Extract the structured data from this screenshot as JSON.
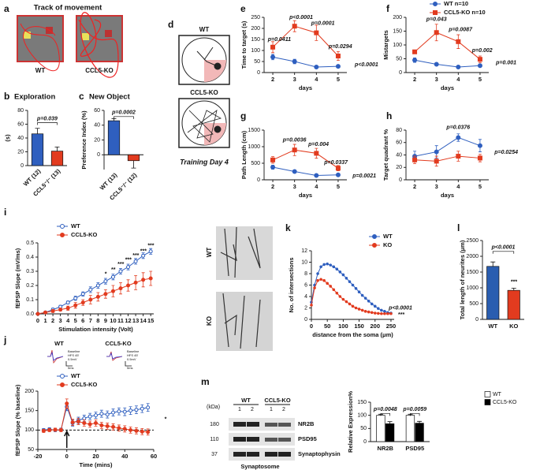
{
  "figure": {
    "a": {
      "panel": "a",
      "title": "Track of movement",
      "labels": [
        "WT",
        "CCL5-KO"
      ]
    },
    "d": {
      "panel": "d",
      "labels": [
        "WT",
        "CCL5-KO"
      ],
      "caption": "Training Day 4"
    },
    "j_traces": {
      "labels": [
        "WT",
        "CCL5-KO"
      ],
      "legend": [
        "Baseline",
        "HFS 45'",
        "0.5mV",
        "5ms"
      ]
    },
    "k_images": {
      "labels": [
        "WT",
        "KO"
      ]
    },
    "m_blot": {
      "unit": "(kDa)",
      "markers": [
        180,
        110,
        37
      ],
      "bands": [
        "NR2B",
        "PSD95",
        "Synaptophysin"
      ],
      "groups": [
        "WT",
        "CCL5-KO"
      ],
      "lanes": [
        1,
        2,
        1,
        2
      ],
      "caption": "Synaptosome"
    }
  },
  "chart_data": [
    {
      "panel": "b",
      "type": "bar",
      "title": "Exploration",
      "ylabel": "(s)",
      "categories": [
        "WT (12)",
        "CCL5⁻/⁻ (13)"
      ],
      "values": [
        46,
        21
      ],
      "errors": [
        8,
        6
      ],
      "colors": [
        "#2f5fbf",
        "#e23b1f"
      ],
      "ylim": [
        0,
        80
      ],
      "yticks": [
        0,
        20,
        40,
        60,
        80
      ],
      "annotations": [
        {
          "text": "p=0.039",
          "y": 68
        }
      ]
    },
    {
      "panel": "c",
      "type": "bar",
      "title": "New Object",
      "ylabel": "Preference Index (%)",
      "categories": [
        "WT (13)",
        "CCL5⁻/⁻ (12)"
      ],
      "values": [
        46,
        -8
      ],
      "errors": [
        3,
        10
      ],
      "colors": [
        "#2f5fbf",
        "#e23b1f"
      ],
      "ylim": [
        -20,
        60
      ],
      "yticks": [
        0,
        20,
        40,
        60
      ],
      "annotations": [
        {
          "text": "p=0.0002",
          "y": 57
        }
      ]
    },
    {
      "panel": "e",
      "type": "line",
      "ylabel": "Time to target (s)",
      "xlabel": "days",
      "x": [
        2,
        3,
        4,
        5
      ],
      "xlim": [
        1.6,
        5.4
      ],
      "xticks": [
        2,
        3,
        4,
        5
      ],
      "ylim": [
        0,
        250
      ],
      "yticks": [
        0,
        50,
        100,
        150,
        200,
        250
      ],
      "series": [
        {
          "color": "#2f5fbf",
          "marker": "circle",
          "values": [
            70,
            50,
            25,
            28
          ],
          "errors": [
            12,
            10,
            5,
            5
          ]
        },
        {
          "color": "#e23b1f",
          "marker": "square",
          "values": [
            115,
            210,
            180,
            75
          ],
          "errors": [
            25,
            25,
            35,
            20
          ]
        }
      ],
      "annotations": [
        {
          "text": "p=0.0411",
          "x": 2.3,
          "y": 150
        },
        {
          "text": "p<0.0001",
          "x": 3.3,
          "y": 250
        },
        {
          "text": "p=0.0001",
          "x": 4.3,
          "y": 222
        },
        {
          "text": "p=0.0294",
          "x": 5.1,
          "y": 118
        },
        {
          "text": "p<0.0001",
          "x": 6.3,
          "y": 35
        }
      ]
    },
    {
      "panel": "f",
      "type": "line",
      "ylabel": "Mistargets",
      "xlabel": "days",
      "x": [
        2,
        3,
        4,
        5
      ],
      "xlim": [
        1.6,
        5.4
      ],
      "xticks": [
        2,
        3,
        4,
        5
      ],
      "ylim": [
        0,
        200
      ],
      "yticks": [
        0,
        50,
        100,
        150,
        200
      ],
      "series": [
        {
          "name": "WT n=10",
          "color": "#2f5fbf",
          "marker": "circle",
          "values": [
            45,
            30,
            20,
            25
          ],
          "errors": [
            8,
            5,
            4,
            5
          ]
        },
        {
          "name": "CCL5-KO n=10",
          "color": "#e23b1f",
          "marker": "square",
          "values": [
            75,
            145,
            112,
            48
          ],
          "errors": [
            5,
            30,
            25,
            12
          ]
        }
      ],
      "annotations": [
        {
          "text": "p=0.043",
          "x": 3,
          "y": 192
        },
        {
          "text": "p=0.0087",
          "x": 4.1,
          "y": 155
        },
        {
          "text": "p=0.002",
          "x": 5.1,
          "y": 80
        },
        {
          "text": "p=0.001",
          "x": 6.2,
          "y": 35
        }
      ]
    },
    {
      "panel": "g",
      "type": "line",
      "ylabel": "Path Length (cm)",
      "xlabel": "days",
      "x": [
        2,
        3,
        4,
        5
      ],
      "xlim": [
        1.6,
        5.4
      ],
      "xticks": [
        2,
        3,
        4,
        5
      ],
      "ylim": [
        0,
        1500
      ],
      "yticks": [
        0,
        500,
        1000,
        1500
      ],
      "series": [
        {
          "color": "#2f5fbf",
          "marker": "circle",
          "values": [
            380,
            250,
            130,
            150
          ],
          "errors": [
            60,
            40,
            20,
            30
          ]
        },
        {
          "color": "#e23b1f",
          "marker": "square",
          "values": [
            600,
            900,
            800,
            350
          ],
          "errors": [
            100,
            170,
            150,
            80
          ]
        }
      ],
      "annotations": [
        {
          "text": "p=0.0036",
          "x": 3,
          "y": 1200
        },
        {
          "text": "p=0.004",
          "x": 4.1,
          "y": 1070
        },
        {
          "text": "p=0.0337",
          "x": 4.9,
          "y": 520
        },
        {
          "text": "p=0.0021",
          "x": 6.2,
          "y": 120
        }
      ]
    },
    {
      "panel": "h",
      "type": "line",
      "ylabel": "Target quadrant %",
      "xlabel": "days",
      "x": [
        2,
        3,
        4,
        5
      ],
      "xlim": [
        1.6,
        5.4
      ],
      "xticks": [
        2,
        3,
        4,
        5
      ],
      "ylim": [
        0,
        80
      ],
      "yticks": [
        0,
        20,
        40,
        60,
        80
      ],
      "series": [
        {
          "color": "#2f5fbf",
          "marker": "circle",
          "values": [
            38,
            45,
            68,
            55
          ],
          "errors": [
            8,
            10,
            6,
            10
          ]
        },
        {
          "color": "#e23b1f",
          "marker": "square",
          "values": [
            32,
            30,
            38,
            35
          ],
          "errors": [
            6,
            8,
            8,
            6
          ]
        }
      ],
      "annotations": [
        {
          "text": "p=0.0376",
          "x": 4,
          "y": 84
        },
        {
          "text": "p=0.0254",
          "x": 6.2,
          "y": 44
        }
      ]
    },
    {
      "panel": "i",
      "type": "line",
      "ylabel": "fEPSP Slope (mV/ms)",
      "xlabel": "Stimulation intensity (Volt)",
      "x": [
        0,
        1,
        2,
        3,
        4,
        5,
        6,
        7,
        8,
        9,
        10,
        11,
        12,
        13,
        14,
        15
      ],
      "xlim": [
        0,
        15.4
      ],
      "xticks": [
        0,
        1,
        2,
        3,
        4,
        5,
        6,
        7,
        8,
        9,
        10,
        11,
        12,
        13,
        14,
        15
      ],
      "ylim": [
        0,
        0.5
      ],
      "yticks": [
        {
          "value": 0,
          "label": "0.0"
        },
        0.1,
        0.2,
        0.3,
        0.4,
        0.5
      ],
      "series": [
        {
          "name": "WT",
          "color": "#2f5fbf",
          "marker": "open-circle",
          "values": [
            0,
            0.01,
            0.03,
            0.05,
            0.08,
            0.11,
            0.14,
            0.17,
            0.2,
            0.23,
            0.26,
            0.3,
            0.33,
            0.37,
            0.41,
            0.44
          ],
          "errors": [
            0,
            0.005,
            0.01,
            0.01,
            0.01,
            0.015,
            0.015,
            0.02,
            0.02,
            0.02,
            0.02,
            0.02,
            0.02,
            0.02,
            0.02,
            0.02
          ]
        },
        {
          "name": "CCL5-KO",
          "color": "#e23b1f",
          "marker": "circle",
          "values": [
            0,
            0.01,
            0.02,
            0.03,
            0.04,
            0.06,
            0.08,
            0.1,
            0.12,
            0.14,
            0.16,
            0.18,
            0.2,
            0.22,
            0.24,
            0.25
          ],
          "errors": [
            0,
            0.005,
            0.01,
            0.01,
            0.015,
            0.02,
            0.02,
            0.03,
            0.03,
            0.03,
            0.04,
            0.04,
            0.04,
            0.05,
            0.05,
            0.05
          ]
        }
      ],
      "annotations": [
        {
          "text": "*",
          "x": 9,
          "y": 0.28
        },
        {
          "text": "**",
          "x": 10,
          "y": 0.31
        },
        {
          "text": "***",
          "x": 11,
          "y": 0.35
        },
        {
          "text": "***",
          "x": 12,
          "y": 0.38
        },
        {
          "text": "***",
          "x": 13,
          "y": 0.41
        },
        {
          "text": "***",
          "x": 14,
          "y": 0.44
        },
        {
          "text": "***",
          "x": 15,
          "y": 0.48
        }
      ]
    },
    {
      "panel": "j",
      "type": "line",
      "ylabel": "fEPSP Slope (% baseline)",
      "xlabel": "Time (mins)",
      "x": [
        -16,
        -12,
        -8,
        -4,
        0,
        4,
        8,
        12,
        16,
        20,
        24,
        28,
        32,
        36,
        40,
        44,
        48,
        52,
        56
      ],
      "xlim": [
        -20,
        60
      ],
      "xticks": [
        -20,
        0,
        20,
        40,
        60
      ],
      "ylim": [
        50,
        200
      ],
      "yticks": [
        50,
        100,
        150,
        200
      ],
      "hline": 100,
      "stimulus_at": 0,
      "series": [
        {
          "name": "WT",
          "color": "#2f5fbf",
          "marker": "open-circle",
          "values": [
            100,
            102,
            100,
            101,
            160,
            118,
            125,
            130,
            135,
            138,
            142,
            140,
            145,
            148,
            147,
            150,
            152,
            155,
            158
          ],
          "errors": [
            4,
            4,
            4,
            4,
            10,
            8,
            8,
            8,
            8,
            8,
            9,
            9,
            9,
            9,
            10,
            10,
            10,
            10,
            10
          ]
        },
        {
          "name": "CCL5-KO",
          "color": "#e23b1f",
          "marker": "circle",
          "values": [
            98,
            100,
            101,
            100,
            168,
            120,
            122,
            118,
            115,
            118,
            112,
            110,
            108,
            105,
            103,
            100,
            98,
            96,
            95
          ],
          "errors": [
            4,
            4,
            4,
            4,
            12,
            8,
            8,
            8,
            8,
            8,
            8,
            8,
            8,
            8,
            8,
            8,
            8,
            8,
            8
          ]
        }
      ],
      "annotations": [
        {
          "text": "*",
          "x": 68,
          "y": 128
        }
      ]
    },
    {
      "panel": "k",
      "type": "line",
      "ylabel": "No. of intersections",
      "xlabel": "distance from the soma (μm)",
      "x": [
        0,
        10,
        20,
        30,
        40,
        50,
        60,
        70,
        80,
        90,
        100,
        110,
        120,
        130,
        140,
        150,
        160,
        170,
        180,
        190,
        200,
        210,
        220,
        230,
        240,
        250
      ],
      "xlim": [
        0,
        260
      ],
      "xticks": [
        0,
        50,
        100,
        150,
        200,
        250
      ],
      "ylim": [
        0,
        12
      ],
      "yticks": [
        0,
        2,
        4,
        6,
        8,
        10,
        12
      ],
      "series": [
        {
          "name": "WT",
          "color": "#2f5fbf",
          "marker": "circle",
          "values": [
            3,
            6,
            8,
            9.2,
            9.6,
            9.7,
            9.5,
            9.2,
            8.8,
            8.3,
            7.8,
            7.2,
            6.6,
            6,
            5.4,
            4.8,
            4.2,
            3.7,
            3.2,
            2.7,
            2.3,
            1.9,
            1.6,
            1.4,
            1.2,
            1.1
          ]
        },
        {
          "name": "KO",
          "color": "#e23b1f",
          "marker": "circle",
          "values": [
            2.5,
            5.5,
            6.8,
            7,
            6.8,
            6.3,
            5.8,
            5.2,
            4.6,
            4,
            3.5,
            3.1,
            2.7,
            2.3,
            2,
            1.8,
            1.6,
            1.4,
            1.3,
            1.2,
            1.1,
            1.05,
            1,
            1,
            1,
            1
          ]
        }
      ],
      "annotations": [
        {
          "text": "p<0.0001",
          "x": 280,
          "y": 2
        },
        {
          "text": "***",
          "x": 282,
          "y": 0.8
        }
      ]
    },
    {
      "panel": "l",
      "type": "bar",
      "ylabel": "Total length of neurites (μm)",
      "categories": [
        "WT",
        "KO"
      ],
      "values": [
        1680,
        920
      ],
      "errors": [
        140,
        70
      ],
      "colors": [
        "#2a5db0",
        "#e23b1f"
      ],
      "ylim": [
        0,
        2500
      ],
      "yticks": [
        0,
        500,
        1000,
        1500,
        2000,
        2500
      ],
      "annotations": [
        {
          "text": "p<0.0001",
          "y": 2280
        },
        {
          "text": "***",
          "x": "KO",
          "y": 1180
        }
      ]
    },
    {
      "panel": "m",
      "type": "bar",
      "ylabel": "Relative Expression%",
      "categories": [
        "NR2B",
        "PSD95"
      ],
      "ylim": [
        0,
        150
      ],
      "yticks": [
        0,
        50,
        100,
        150
      ],
      "series": [
        {
          "name": "WT",
          "color": "#ffffff",
          "values": [
            100,
            100
          ],
          "errors": [
            4,
            4
          ]
        },
        {
          "name": "CCL5-KO",
          "color": "#000000",
          "values": [
            68,
            70
          ],
          "errors": [
            8,
            7
          ]
        }
      ],
      "annotations": [
        {
          "text": "p=0.0048",
          "x": "NR2B",
          "y": 122
        },
        {
          "text": "p=0.0059",
          "x": "PSD95",
          "y": 122
        }
      ]
    }
  ]
}
